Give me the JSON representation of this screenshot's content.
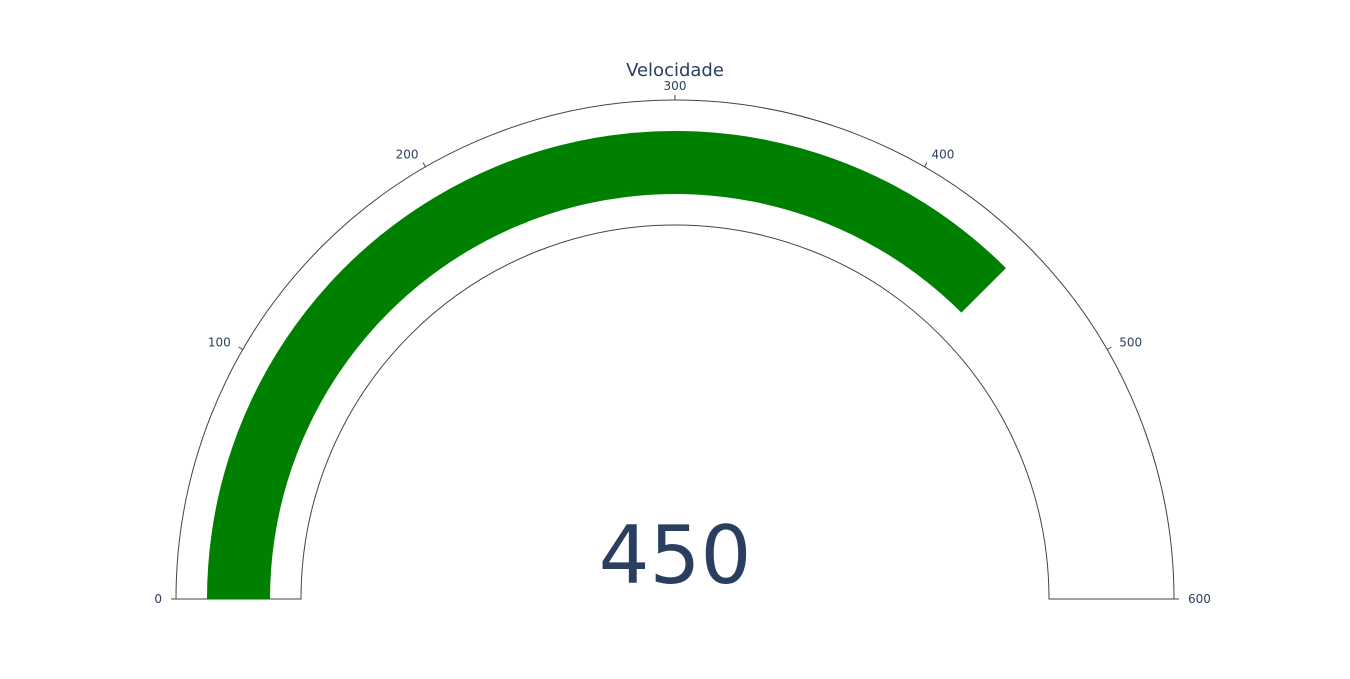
{
  "chart_data": {
    "type": "gauge",
    "title": "Velocidade",
    "value": 450,
    "value_label": "450",
    "range": [
      0,
      600
    ],
    "ticks": [
      {
        "value": 0,
        "label": "0"
      },
      {
        "value": 100,
        "label": "100"
      },
      {
        "value": 200,
        "label": "200"
      },
      {
        "value": 300,
        "label": "300"
      },
      {
        "value": 400,
        "label": "400"
      },
      {
        "value": 500,
        "label": "500"
      },
      {
        "value": 600,
        "label": "600"
      }
    ],
    "bar_color": "#008000",
    "outline_color": "#444444",
    "text_color": "#2a3f5f"
  }
}
